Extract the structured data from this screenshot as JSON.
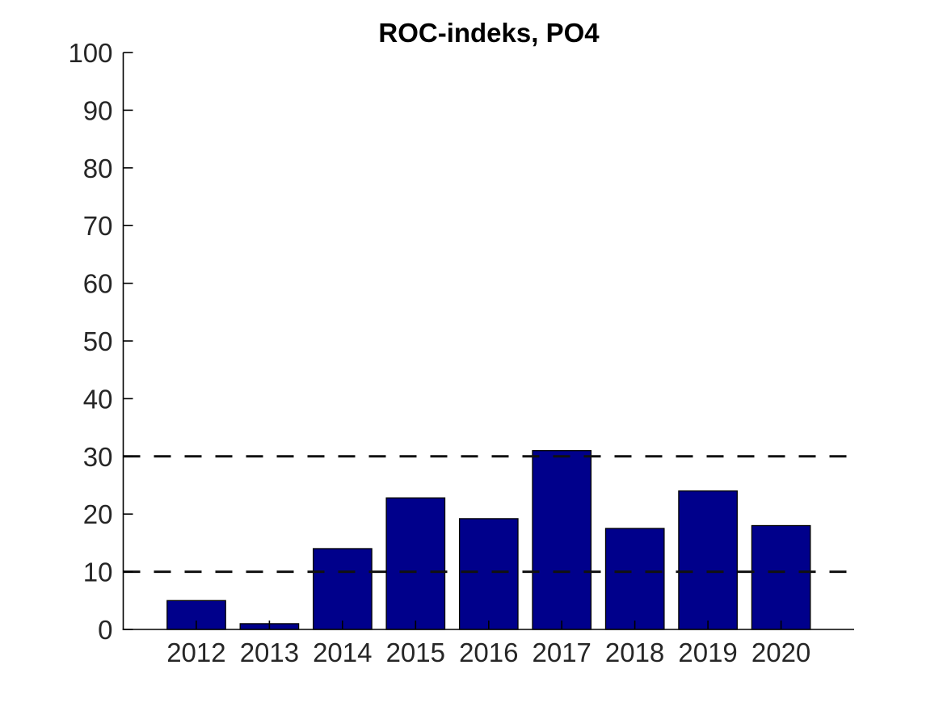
{
  "title": "ROC-indeks, PO4",
  "colors": {
    "bar_fill": "#00008B",
    "bar_edge": "#000000",
    "reference_line": "#111111",
    "axis": "#000000",
    "tick_label": "#262626",
    "background": "#ffffff"
  },
  "chart_data": {
    "type": "bar",
    "title": "ROC-indeks, PO4",
    "categories": [
      "2012",
      "2013",
      "2014",
      "2015",
      "2016",
      "2017",
      "2018",
      "2019",
      "2020"
    ],
    "values": [
      5,
      1,
      14,
      22.8,
      19.2,
      31,
      17.5,
      24,
      18
    ],
    "xlabel": "",
    "ylabel": "",
    "ylim": [
      0,
      100
    ],
    "ytick_step": 10,
    "ytick_labels": [
      "0",
      "10",
      "20",
      "30",
      "40",
      "50",
      "60",
      "70",
      "80",
      "90",
      "100"
    ],
    "xlim_years": [
      2011,
      2021
    ],
    "reference_lines": [
      10,
      30
    ],
    "reference_line_style": "dashed",
    "grid": false,
    "legend": "none",
    "bar_relative_width": 0.8
  }
}
